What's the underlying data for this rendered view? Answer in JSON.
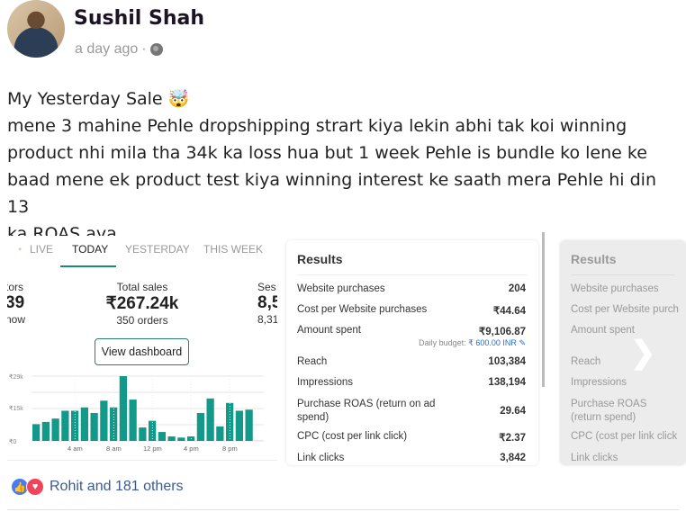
{
  "author": {
    "name": "Sushil Shah",
    "time": "a day ago",
    "separator": "·",
    "privacy_icon": "globe-icon"
  },
  "post": {
    "lines": [
      "My Yesterday Sale 🤯",
      "mene 3 mahine Pehle dropshipping strart kiya lekin abhi tak koi winning",
      "product nhi mila tha 34k ka loss hua but 1 week Pehle is bundle ko lene ke",
      "baad mene ek product test kiya winning interest ke saath mera Pehle hi din 13",
      "ka ROAS aya"
    ]
  },
  "shopify": {
    "tabs": [
      {
        "label": "LIVE"
      },
      {
        "label": "TODAY",
        "active": true
      },
      {
        "label": "YESTERDAY"
      },
      {
        "label": "THIS WEEK"
      }
    ],
    "stats": [
      {
        "label": "tors",
        "value": "39",
        "sub": "now"
      },
      {
        "label": "Total sales",
        "value": "₹267.24k",
        "sub": "350 orders"
      },
      {
        "label": "Ses",
        "value": "8,5",
        "sub": "8,31"
      }
    ],
    "view_dashboard": "View dashboard",
    "accent": "#13998a"
  },
  "chart_data": {
    "type": "bar",
    "x": [
      "0",
      "1",
      "2",
      "3",
      "4",
      "5",
      "6",
      "7",
      "8",
      "9",
      "10",
      "11",
      "12",
      "13",
      "14",
      "15",
      "16",
      "17",
      "18",
      "19",
      "20",
      "21",
      "22",
      "23"
    ],
    "values": [
      7.5,
      8.5,
      10,
      13.5,
      13.5,
      15,
      12.5,
      18,
      15,
      29,
      18.5,
      6,
      9,
      4,
      2,
      1.5,
      2,
      12.5,
      19,
      6.5,
      17,
      13.5,
      14,
      0
    ],
    "yunit": "₹k",
    "ylim": [
      0,
      29
    ],
    "yticks": [
      "₹0",
      "₹15k",
      "₹29k"
    ],
    "xticks": [
      "4 am",
      "8 am",
      "12 pm",
      "4 pm",
      "8 pm"
    ],
    "grid": true,
    "color": "#13998a"
  },
  "results": {
    "title": "Results",
    "rows": [
      {
        "label": "Website purchases",
        "value": "204"
      },
      {
        "label": "Cost per Website purchases",
        "value": "₹44.64"
      },
      {
        "label": "Amount spent",
        "value": "₹9,106.87"
      },
      {
        "label": "Reach",
        "value": "103,384"
      },
      {
        "label": "Impressions",
        "value": "138,194"
      },
      {
        "label": "Purchase ROAS (return on ad spend)",
        "value": "29.64"
      },
      {
        "label": "CPC (cost per link click)",
        "value": "₹2.37"
      },
      {
        "label": "Link clicks",
        "value": "3,842"
      }
    ],
    "budget_label": "Daily budget:",
    "budget_value": "₹ 600.00 INR"
  },
  "results2": {
    "title": "Results",
    "rows": [
      "Website purchases",
      "Cost per Website purch",
      "Amount spent",
      "Reach",
      "Impressions",
      "Purchase ROAS (return spend)",
      "CPC (cost per link click",
      "Link clicks"
    ]
  },
  "reactions": {
    "text": "Rohit and 181 others",
    "like_color": "#4a7cf0",
    "love_color": "#f0445a"
  }
}
